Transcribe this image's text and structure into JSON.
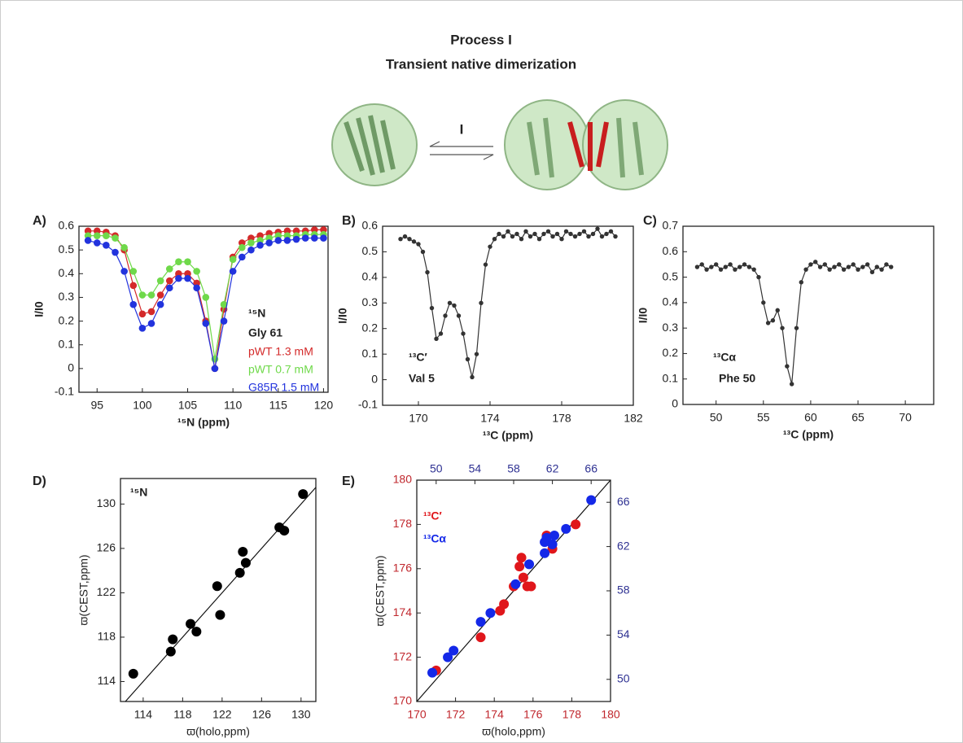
{
  "header": {
    "title": "Process I",
    "subtitle": "Transient native dimerization",
    "scheme_label": "I"
  },
  "chart_data": [
    {
      "type": "line",
      "panel": "A)",
      "x_label": "¹⁵N (ppm)",
      "y_label": "I/I0",
      "annotations": [
        "¹⁵N",
        "Gly 61"
      ],
      "x": [
        94,
        95,
        96,
        97,
        98,
        99,
        100,
        101,
        102,
        103,
        104,
        105,
        106,
        107,
        108,
        109,
        110,
        111,
        112,
        113,
        114,
        115,
        116,
        117,
        118,
        119,
        120
      ],
      "series": [
        {
          "name": "pWT 1.3 mM",
          "color": "#d42a2a",
          "values": [
            0.58,
            0.58,
            0.575,
            0.56,
            0.5,
            0.35,
            0.23,
            0.24,
            0.31,
            0.37,
            0.4,
            0.4,
            0.36,
            0.2,
            0,
            0.25,
            0.47,
            0.53,
            0.55,
            0.56,
            0.57,
            0.575,
            0.58,
            0.58,
            0.58,
            0.585,
            0.585
          ]
        },
        {
          "name": "pWT 0.7 mM",
          "color": "#6fd94a",
          "values": [
            0.56,
            0.56,
            0.56,
            0.55,
            0.51,
            0.41,
            0.31,
            0.31,
            0.37,
            0.42,
            0.45,
            0.45,
            0.41,
            0.3,
            0.04,
            0.27,
            0.46,
            0.51,
            0.53,
            0.54,
            0.55,
            0.56,
            0.56,
            0.56,
            0.565,
            0.565,
            0.565
          ]
        },
        {
          "name": "G85R 1.5 mM",
          "color": "#2233dd",
          "values": [
            0.54,
            0.53,
            0.52,
            0.49,
            0.41,
            0.27,
            0.17,
            0.19,
            0.27,
            0.34,
            0.38,
            0.38,
            0.34,
            0.19,
            0,
            0.2,
            0.41,
            0.47,
            0.5,
            0.52,
            0.53,
            0.54,
            0.54,
            0.545,
            0.55,
            0.55,
            0.55
          ]
        }
      ],
      "xlim": [
        93,
        120.5
      ],
      "xticks": [
        95,
        100,
        105,
        110,
        115,
        120
      ],
      "ylim": [
        -0.1,
        0.6
      ],
      "yticks": [
        -0.1,
        0,
        0.1,
        0.2,
        0.3,
        0.4,
        0.5,
        0.6
      ]
    },
    {
      "type": "line",
      "panel": "B)",
      "x_label": "¹³C (ppm)",
      "y_label": "I/I0",
      "color": "#333333",
      "annotations": [
        "¹³C′",
        "Val 5"
      ],
      "x": [
        169,
        169.25,
        169.5,
        169.75,
        170,
        170.25,
        170.5,
        170.75,
        171,
        171.25,
        171.5,
        171.75,
        172,
        172.25,
        172.5,
        172.75,
        173,
        173.25,
        173.5,
        173.75,
        174,
        174.25,
        174.5,
        174.75,
        175,
        175.25,
        175.5,
        175.75,
        176,
        176.25,
        176.5,
        176.75,
        177,
        177.25,
        177.5,
        177.75,
        178,
        178.25,
        178.5,
        178.75,
        179,
        179.25,
        179.5,
        179.75,
        180,
        180.25,
        180.5,
        180.75,
        181
      ],
      "values": [
        0.55,
        0.56,
        0.55,
        0.54,
        0.53,
        0.5,
        0.42,
        0.28,
        0.16,
        0.18,
        0.25,
        0.3,
        0.29,
        0.25,
        0.18,
        0.08,
        0.01,
        0.1,
        0.3,
        0.45,
        0.52,
        0.55,
        0.57,
        0.56,
        0.58,
        0.56,
        0.57,
        0.55,
        0.58,
        0.56,
        0.57,
        0.55,
        0.57,
        0.58,
        0.56,
        0.57,
        0.55,
        0.58,
        0.57,
        0.56,
        0.57,
        0.58,
        0.56,
        0.57,
        0.59,
        0.56,
        0.57,
        0.58,
        0.56
      ],
      "xlim": [
        168,
        182
      ],
      "xticks": [
        170,
        174,
        178,
        182
      ],
      "ylim": [
        -0.1,
        0.6
      ],
      "yticks": [
        -0.1,
        0,
        0.1,
        0.2,
        0.3,
        0.4,
        0.5,
        0.6
      ]
    },
    {
      "type": "line",
      "panel": "C)",
      "x_label": "¹³C (ppm)",
      "y_label": "I/I0",
      "color": "#333333",
      "annotations": [
        "¹³Cα",
        "Phe 50"
      ],
      "x": [
        48,
        48.5,
        49,
        49.5,
        50,
        50.5,
        51,
        51.5,
        52,
        52.5,
        53,
        53.5,
        54,
        54.5,
        55,
        55.5,
        56,
        56.5,
        57,
        57.5,
        58,
        58.5,
        59,
        59.5,
        60,
        60.5,
        61,
        61.5,
        62,
        62.5,
        63,
        63.5,
        64,
        64.5,
        65,
        65.5,
        66,
        66.5,
        67,
        67.5,
        68,
        68.5
      ],
      "values": [
        0.54,
        0.55,
        0.53,
        0.54,
        0.55,
        0.53,
        0.54,
        0.55,
        0.53,
        0.54,
        0.55,
        0.54,
        0.53,
        0.5,
        0.4,
        0.32,
        0.33,
        0.37,
        0.3,
        0.15,
        0.08,
        0.3,
        0.48,
        0.53,
        0.55,
        0.56,
        0.54,
        0.55,
        0.53,
        0.54,
        0.55,
        0.53,
        0.54,
        0.55,
        0.53,
        0.54,
        0.55,
        0.52,
        0.54,
        0.53,
        0.55,
        0.54
      ],
      "xlim": [
        46.5,
        73
      ],
      "xticks": [
        50,
        55,
        60,
        65,
        70
      ],
      "ylim": [
        0,
        0.7
      ],
      "yticks": [
        0,
        0.1,
        0.2,
        0.3,
        0.4,
        0.5,
        0.6,
        0.7
      ]
    },
    {
      "type": "scatter",
      "panel": "D)",
      "x_label": "ϖ(holo,ppm)",
      "y_label": "ϖ(CEST,ppm)",
      "color": "#000000",
      "annotations": [
        "¹⁵N"
      ],
      "identity_line": true,
      "x": [
        113,
        116.8,
        117,
        118.8,
        119.4,
        121.5,
        121.8,
        123.8,
        124.1,
        124.4,
        127.8,
        128.3,
        130.2
      ],
      "values": [
        114.7,
        116.7,
        117.8,
        119.2,
        118.5,
        122.6,
        120,
        123.8,
        125.7,
        124.7,
        127.9,
        127.6,
        130.9
      ],
      "xlim": [
        111.7,
        131.5
      ],
      "xticks": [
        114,
        118,
        122,
        126,
        130
      ],
      "ylim": [
        112.2,
        132.3
      ],
      "yticks": [
        114,
        118,
        122,
        126,
        130
      ]
    },
    {
      "type": "scatter",
      "panel": "E)",
      "x_label": "ϖ(holo,ppm)",
      "y_label": "ϖ(CEST,ppm)",
      "identity_line": true,
      "axis_color": "#c0272d",
      "axis2_color": "#2e3192",
      "series": [
        {
          "name": "¹³C′",
          "color": "#e0161b",
          "x": [
            171,
            173.3,
            174.3,
            174.5,
            175,
            175.3,
            175.4,
            175.5,
            175.7,
            175.9,
            176.7,
            177,
            178.2
          ],
          "values": [
            171.4,
            172.9,
            174.1,
            174.4,
            175.2,
            176.1,
            176.5,
            175.6,
            175.2,
            175.2,
            177.5,
            176.9,
            178
          ]
        },
        {
          "name": "¹³Cα",
          "color": "#1428e8",
          "axis": "y2",
          "x_axis": "x2",
          "x": [
            49.6,
            51.2,
            51.8,
            54.6,
            55.6,
            58.2,
            59.6,
            61.2,
            61.2,
            61.4,
            62,
            62.2,
            63.4,
            66
          ],
          "values": [
            50.6,
            52,
            52.6,
            55.2,
            56,
            58.6,
            60.4,
            61.4,
            62.4,
            62.8,
            62.2,
            63,
            63.6,
            66.2
          ]
        }
      ],
      "xlim": [
        170,
        180
      ],
      "xticks": [
        170,
        172,
        174,
        176,
        178,
        180
      ],
      "ylim": [
        170,
        180
      ],
      "yticks": [
        170,
        172,
        174,
        176,
        178,
        180
      ],
      "x2lim": [
        48,
        68
      ],
      "x2ticks": [
        50,
        54,
        58,
        62,
        66
      ],
      "y2lim": [
        48,
        68
      ],
      "y2ticks": [
        50,
        54,
        58,
        62,
        66
      ]
    }
  ]
}
